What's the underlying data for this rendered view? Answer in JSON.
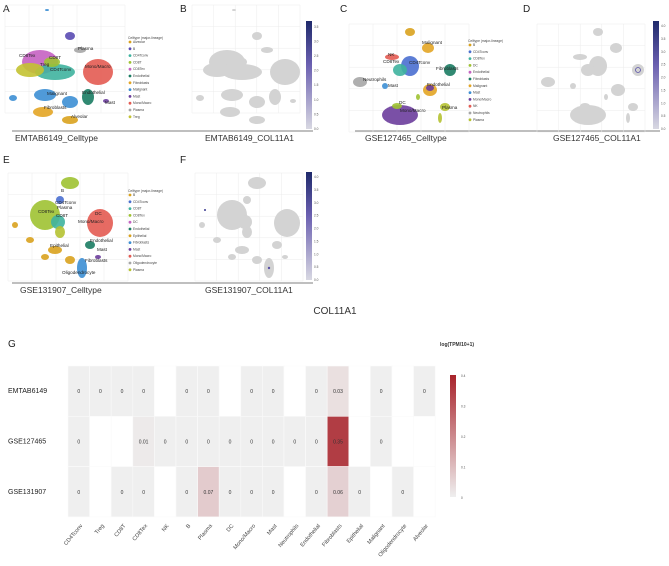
{
  "panels": {
    "A": {
      "letter": "A",
      "caption": "EMTAB6149_Celltype",
      "legend_title": "Celltype (major-lineage)",
      "legend": [
        {
          "label": "Alveolar",
          "color": "#d9a21e"
        },
        {
          "label": "B",
          "color": "#5a4bb3"
        },
        {
          "label": "CD4Tconv",
          "color": "#3fb39f"
        },
        {
          "label": "CD8T",
          "color": "#9fc232"
        },
        {
          "label": "CD8Tex",
          "color": "#c562c2"
        },
        {
          "label": "Endothelial",
          "color": "#1b7c63"
        },
        {
          "label": "Fibroblasts",
          "color": "#e3a525"
        },
        {
          "label": "Malignant",
          "color": "#3d8fd4"
        },
        {
          "label": "Mast",
          "color": "#6b3d9c"
        },
        {
          "label": "Mono/Macro",
          "color": "#e35b52"
        },
        {
          "label": "Plasma",
          "color": "#a6a6a6"
        },
        {
          "label": "Treg",
          "color": "#c3c232"
        }
      ],
      "cluster_labels": [
        "Plasma",
        "CD8Tex",
        "CD8T",
        "Treg",
        "CD4Tconv",
        "Mono/Macro",
        "Malignant",
        "Endothelial",
        "Mast",
        "Fibroblasts",
        "Alveolar"
      ]
    },
    "B": {
      "letter": "B",
      "caption": "EMTAB6149_COL11A1",
      "ticks": [
        "0.0",
        "0.5",
        "1.0",
        "1.5",
        "2.0",
        "2.5",
        "3.0",
        "3.5"
      ]
    },
    "C": {
      "letter": "C",
      "caption": "GSE127465_Celltype",
      "legend_title": "Celltype (major-lineage)",
      "legend": [
        {
          "label": "B",
          "color": "#d9a21e"
        },
        {
          "label": "CD4Tconv",
          "color": "#4a6fd0"
        },
        {
          "label": "CD8Tex",
          "color": "#3fb39f"
        },
        {
          "label": "DC",
          "color": "#9fc232"
        },
        {
          "label": "Endothelial",
          "color": "#c562c2"
        },
        {
          "label": "Fibroblasts",
          "color": "#1b7c63"
        },
        {
          "label": "Malignant",
          "color": "#e3a525"
        },
        {
          "label": "Mast",
          "color": "#3d8fd4"
        },
        {
          "label": "Mono/Macro",
          "color": "#6b3d9c"
        },
        {
          "label": "NK",
          "color": "#e35b52"
        },
        {
          "label": "Neutrophils",
          "color": "#a6a6a6"
        },
        {
          "label": "Plasma",
          "color": "#b5c232"
        }
      ],
      "cluster_labels": [
        "Malignant",
        "NK",
        "CD8Tex",
        "CD4Tconv",
        "Fibroblasts",
        "Neutrophils",
        "Mast",
        "Endothelial",
        "DC",
        "Mono/Macro",
        "Plasma"
      ]
    },
    "D": {
      "letter": "D",
      "caption": "GSE127465_COL11A1",
      "ticks": [
        "0.0",
        "0.5",
        "1.0",
        "1.5",
        "2.0",
        "2.5",
        "3.0",
        "3.5",
        "4.0"
      ]
    },
    "E": {
      "letter": "E",
      "caption": "GSE131907_Celltype",
      "legend_title": "Celltype (major-lineage)",
      "legend": [
        {
          "label": "B",
          "color": "#d9a21e"
        },
        {
          "label": "CD4Tconv",
          "color": "#4a6fd0"
        },
        {
          "label": "CD8T",
          "color": "#3fb39f"
        },
        {
          "label": "CD8Tex",
          "color": "#9fc232"
        },
        {
          "label": "DC",
          "color": "#c562c2"
        },
        {
          "label": "Endothelial",
          "color": "#1b7c63"
        },
        {
          "label": "Epithelial",
          "color": "#d9a21e"
        },
        {
          "label": "Fibroblasts",
          "color": "#3d8fd4"
        },
        {
          "label": "Mast",
          "color": "#6b3d9c"
        },
        {
          "label": "Mono/Macro",
          "color": "#e35b52"
        },
        {
          "label": "Oligodendrocyte",
          "color": "#a6a6a6"
        },
        {
          "label": "Plasma",
          "color": "#b5c232"
        }
      ],
      "cluster_labels": [
        "B",
        "CD4Tconv",
        "CD8Tex",
        "Plasma",
        "CD8T",
        "DC",
        "Mono/Macro",
        "Endothelial",
        "Epithelial",
        "Mast",
        "Fibroblasts",
        "Oligodendrocyte"
      ]
    },
    "F": {
      "letter": "F",
      "caption": "GSE131907_COL11A1",
      "ticks": [
        "0.0",
        "0.5",
        "1.0",
        "1.5",
        "2.0",
        "2.5",
        "3.0",
        "3.5",
        "4.0"
      ]
    }
  },
  "colors": {
    "umap_grey": "#d3d3d3",
    "expr_low": "#d8d8e2",
    "expr_high": "#1f2a6b",
    "heat_low": "#efefef",
    "heat_high": "#a8232b",
    "na": "#ffffff"
  },
  "chart_data": {
    "type": "heatmap",
    "panel_letter": "G",
    "title": "COL11A1",
    "legend_title": "log(TPM/10+1)",
    "legend_ticks": [
      0,
      0.1,
      0.2,
      0.3,
      0.4
    ],
    "legend_tick_labels": [
      "0",
      "0.1",
      "0.2",
      "0.3",
      "0.4"
    ],
    "range": [
      0,
      0.4
    ],
    "rows": [
      "EMTAB6149",
      "GSE127465",
      "GSE131907"
    ],
    "columns": [
      "CD4Tconv",
      "Treg",
      "CD8T",
      "CD8Tex",
      "NK",
      "B",
      "Plasma",
      "DC",
      "Mono/Macro",
      "Mast",
      "Neutrophils",
      "Endothelial",
      "Fibroblasts",
      "Epithelial",
      "Malignant",
      "Oligodendrocyte",
      "Alveolar"
    ],
    "values": [
      [
        0,
        0,
        0,
        0,
        null,
        0,
        0,
        null,
        0,
        0,
        null,
        0,
        0.03,
        null,
        0,
        null,
        0
      ],
      [
        0,
        null,
        null,
        0.01,
        0,
        0,
        0,
        0,
        0,
        0,
        0,
        0,
        0.35,
        null,
        0,
        null,
        null
      ],
      [
        0,
        null,
        0,
        0,
        null,
        0,
        0.07,
        0,
        0,
        0,
        null,
        0,
        0.06,
        0,
        null,
        0,
        null
      ]
    ],
    "value_labels": [
      [
        "0",
        "0",
        "0",
        "0",
        null,
        "0",
        "0",
        null,
        "0",
        "0",
        null,
        "0",
        "0.03",
        null,
        "0",
        null,
        "0"
      ],
      [
        "0",
        null,
        null,
        "0.01",
        "0",
        "0",
        "0",
        "0",
        "0",
        "0",
        "0",
        "0",
        "0.35",
        null,
        "0",
        null,
        null
      ],
      [
        "0",
        null,
        "0",
        "0",
        null,
        "0",
        "0.07",
        "0",
        "0",
        "0",
        null,
        "0",
        "0.06",
        "0",
        null,
        "0",
        null
      ]
    ]
  }
}
